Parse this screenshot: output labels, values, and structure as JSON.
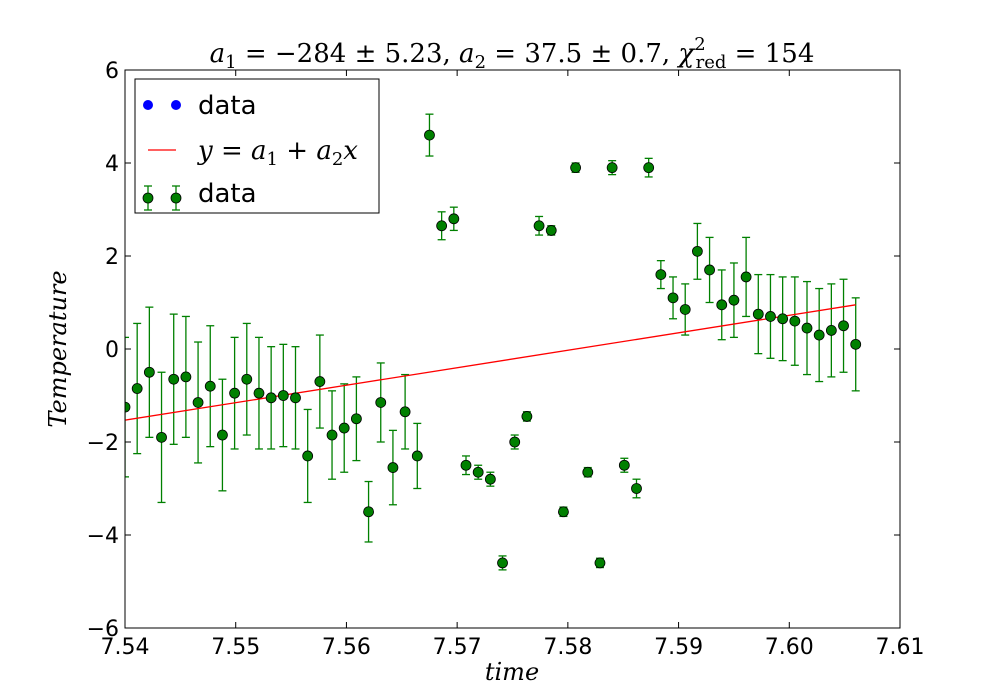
{
  "chart_data": {
    "type": "scatter",
    "title_parts": [
      "a",
      "1",
      " = −284 ± 5.23, ",
      "a",
      "2",
      " = 37.5 ± 0.7, ",
      "χ",
      "2",
      "red",
      " = 154"
    ],
    "xlabel": "time",
    "ylabel": "Temperature",
    "xlim": [
      7.54,
      7.61
    ],
    "ylim": [
      -6,
      6
    ],
    "x_ticks": [
      7.54,
      7.55,
      7.56,
      7.57,
      7.58,
      7.59,
      7.6,
      7.61
    ],
    "x_tick_labels": [
      "7.54",
      "7.55",
      "7.56",
      "7.57",
      "7.58",
      "7.59",
      "7.60",
      "7.61"
    ],
    "y_ticks": [
      -6,
      -4,
      -2,
      0,
      2,
      4,
      6
    ],
    "y_tick_labels": [
      "−6",
      "−4",
      "−2",
      "0",
      "2",
      "4",
      "6"
    ],
    "legend_position": "top-left",
    "legend": [
      {
        "name": "data",
        "marker": "blue-dots"
      },
      {
        "name_parts": [
          "y",
          " = ",
          "a",
          "1",
          " + ",
          "a",
          "2",
          "x"
        ],
        "marker": "red-line"
      },
      {
        "name": "data",
        "marker": "green-errorbar"
      }
    ],
    "colors": {
      "points": "#008000",
      "point_edge": "#000000",
      "errorbar": "#008000",
      "fit": "#ff0000",
      "blue_dots": "#0000ff"
    },
    "fit_line": {
      "x": [
        7.54,
        7.606
      ],
      "y": [
        -1.53,
        0.95
      ]
    },
    "series": [
      {
        "x": [
          7.54,
          7.5411,
          7.5422,
          7.5433,
          7.5444,
          7.5455,
          7.5466,
          7.5477,
          7.5488,
          7.5499,
          7.551,
          7.5521,
          7.5532,
          7.5543,
          7.5554,
          7.5565,
          7.5576,
          7.5587,
          7.5598,
          7.5609,
          7.562,
          7.5631,
          7.5642,
          7.5653,
          7.5664,
          7.5675,
          7.5686,
          7.5697,
          7.5708,
          7.5719,
          7.573,
          7.5741,
          7.5752,
          7.5763,
          7.5774,
          7.5785,
          7.5796,
          7.5807,
          7.5818,
          7.5829,
          7.584,
          7.5851,
          7.5862,
          7.5873,
          7.5884,
          7.5895,
          7.5906,
          7.5917,
          7.5928,
          7.5939,
          7.595,
          7.5961,
          7.5972,
          7.5983,
          7.5994,
          7.6005,
          7.6016,
          7.6027,
          7.6038,
          7.6049,
          7.606
        ],
        "y": [
          -1.25,
          -0.85,
          -0.5,
          -1.9,
          -0.65,
          -0.6,
          -1.15,
          -0.8,
          -1.85,
          -0.95,
          -0.65,
          -0.95,
          -1.05,
          -1.0,
          -1.05,
          -2.3,
          -0.7,
          -1.85,
          -1.7,
          -1.5,
          -3.5,
          -1.15,
          -2.55,
          -1.35,
          -2.3,
          4.6,
          2.65,
          2.8,
          -2.5,
          -2.65,
          -2.8,
          -4.6,
          -2.0,
          -1.45,
          2.65,
          2.55,
          -3.5,
          3.9,
          -2.65,
          -4.6,
          3.9,
          -2.5,
          -3.0,
          3.9,
          1.6,
          1.1,
          0.85,
          2.1,
          1.7,
          0.95,
          1.05,
          1.55,
          0.75,
          0.7,
          0.65,
          0.6,
          0.45,
          0.3,
          0.4,
          0.5,
          0.1
        ],
        "yerr": [
          1.5,
          1.4,
          1.4,
          1.4,
          1.4,
          1.3,
          1.3,
          1.3,
          1.2,
          1.2,
          1.2,
          1.2,
          1.1,
          1.1,
          1.1,
          1.0,
          1.0,
          0.95,
          0.95,
          0.9,
          0.65,
          0.85,
          0.8,
          0.8,
          0.7,
          0.45,
          0.3,
          0.25,
          0.2,
          0.15,
          0.15,
          0.15,
          0.15,
          0.1,
          0.2,
          0.1,
          0.1,
          0.1,
          0.1,
          0.1,
          0.15,
          0.15,
          0.2,
          0.2,
          0.3,
          0.45,
          0.55,
          0.6,
          0.7,
          0.75,
          0.8,
          0.85,
          0.85,
          0.9,
          0.9,
          0.95,
          1.0,
          1.0,
          1.0,
          1.0,
          1.0
        ]
      }
    ]
  }
}
